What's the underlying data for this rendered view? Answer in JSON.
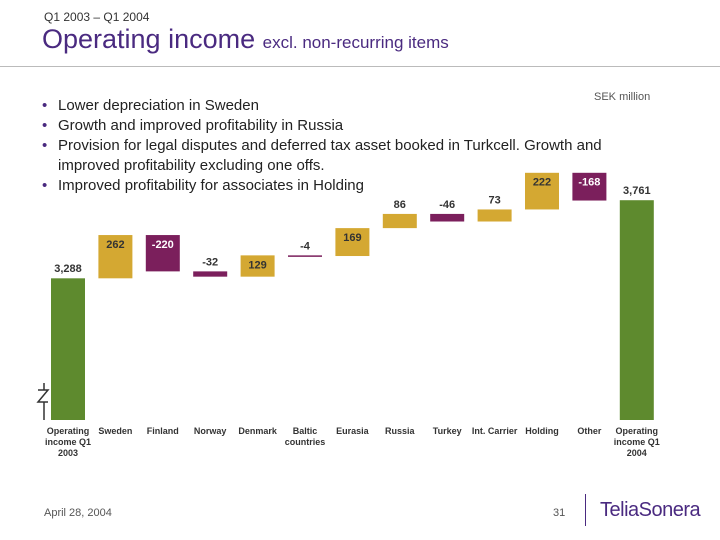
{
  "header": {
    "kicker": "Q1 2003 – Q1 2004",
    "title": "Operating income",
    "subtitle": "excl. non-recurring items"
  },
  "bullets": [
    "Lower depreciation in Sweden",
    "Growth and improved profitability in Russia",
    "Provision for legal disputes and deferred tax asset booked in Turkcell. Growth and improved profitability excluding one offs.",
    "Improved profitability for associates in Holding"
  ],
  "chart_data": {
    "type": "waterfall",
    "unit_label": "SEK million",
    "categories": [
      "Operating income Q1 2003",
      "Sweden",
      "Finland",
      "Norway",
      "Denmark",
      "Baltic countries",
      "Eurasia",
      "Russia",
      "Turkey",
      "Int. Carrier",
      "Holding",
      "Other",
      "Operating income Q1 2004"
    ],
    "values": [
      3288,
      262,
      -220,
      -32,
      129,
      -4,
      169,
      86,
      -46,
      73,
      222,
      -168,
      3761
    ],
    "value_labels": [
      "3,288",
      "262",
      "-220",
      "-32",
      "129",
      "-4",
      "169",
      "86",
      "-46",
      "73",
      "222",
      "-168",
      "3,761"
    ],
    "colors": {
      "total": "#5e8a2e",
      "increase": "#d4a832",
      "decrease": "#7b1f5c"
    },
    "ylim": [
      2430,
      3950
    ]
  },
  "footer": {
    "date": "April 28, 2004",
    "page": "31",
    "logo": "TeliaSonera"
  }
}
